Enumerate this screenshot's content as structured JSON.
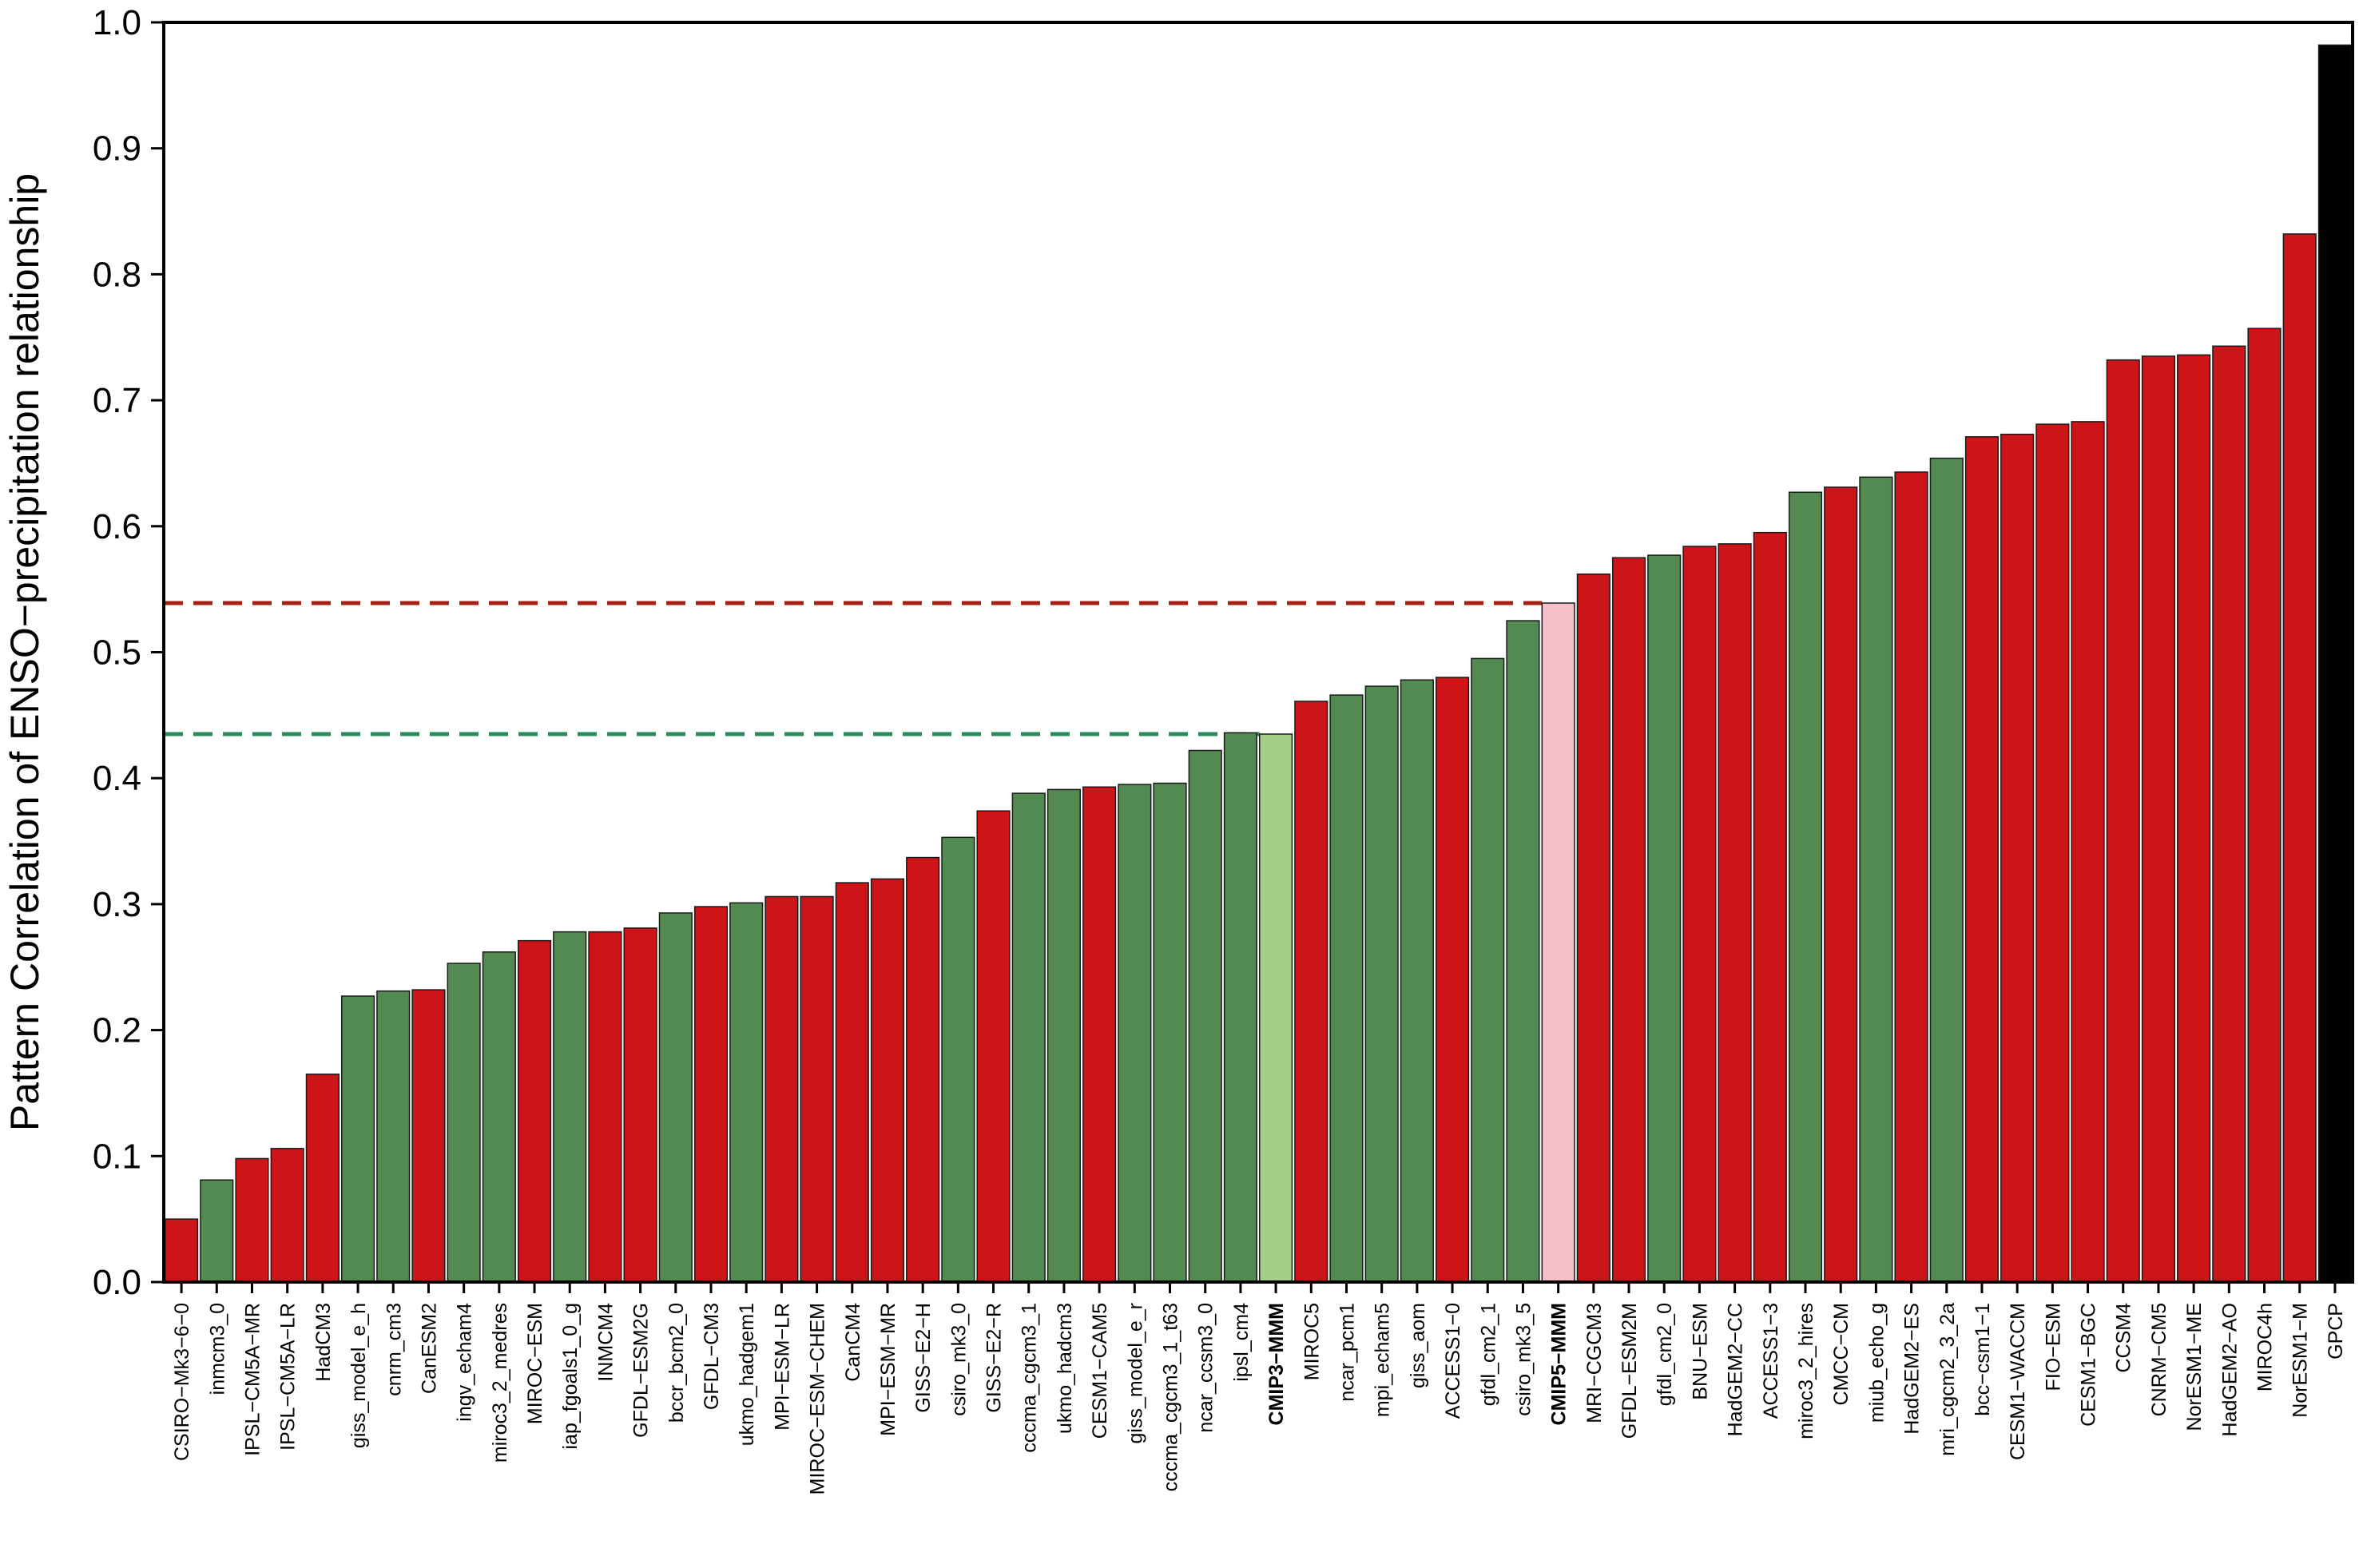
{
  "chart_data": {
    "type": "bar",
    "ylabel": "Pattern Correlation of ENSO−precipitation relationship",
    "xlabel": "",
    "ylim": [
      0.0,
      1.0
    ],
    "yticks": [
      "0.0",
      "0.1",
      "0.2",
      "0.3",
      "0.4",
      "0.5",
      "0.6",
      "0.7",
      "0.8",
      "0.9",
      "1.0"
    ],
    "colors": {
      "cmip5": "#cc1419",
      "cmip3": "#538a52",
      "cmip3_mmm": "#a3cf87",
      "cmip5_mmm": "#f6bfc9",
      "obs": "#000000",
      "cmip5_mmm_line": "#a32314",
      "cmip3_mmm_line": "#2a8a5a"
    },
    "reference_lines": [
      {
        "value": 0.539,
        "color_key": "cmip5_mmm_line",
        "end_category": "CMIP5−MMM"
      },
      {
        "value": 0.435,
        "color_key": "cmip3_mmm_line",
        "end_category": "CMIP3−MMM"
      }
    ],
    "bars": [
      {
        "label": "CSIRO−Mk3−6−0",
        "value": 0.05,
        "group": "cmip5"
      },
      {
        "label": "inmcm3_0",
        "value": 0.081,
        "group": "cmip3"
      },
      {
        "label": "IPSL−CM5A−MR",
        "value": 0.098,
        "group": "cmip5"
      },
      {
        "label": "IPSL−CM5A−LR",
        "value": 0.106,
        "group": "cmip5"
      },
      {
        "label": "HadCM3",
        "value": 0.165,
        "group": "cmip5"
      },
      {
        "label": "giss_model_e_h",
        "value": 0.227,
        "group": "cmip3"
      },
      {
        "label": "cnrm_cm3",
        "value": 0.231,
        "group": "cmip3"
      },
      {
        "label": "CanESM2",
        "value": 0.232,
        "group": "cmip5"
      },
      {
        "label": "ingv_echam4",
        "value": 0.253,
        "group": "cmip3"
      },
      {
        "label": "miroc3_2_medres",
        "value": 0.262,
        "group": "cmip3"
      },
      {
        "label": "MIROC−ESM",
        "value": 0.271,
        "group": "cmip5"
      },
      {
        "label": "iap_fgoals1_0_g",
        "value": 0.278,
        "group": "cmip3"
      },
      {
        "label": "INMCM4",
        "value": 0.278,
        "group": "cmip5"
      },
      {
        "label": "GFDL−ESM2G",
        "value": 0.281,
        "group": "cmip5"
      },
      {
        "label": "bccr_bcm2_0",
        "value": 0.293,
        "group": "cmip3"
      },
      {
        "label": "GFDL−CM3",
        "value": 0.298,
        "group": "cmip5"
      },
      {
        "label": "ukmo_hadgem1",
        "value": 0.301,
        "group": "cmip3"
      },
      {
        "label": "MPI−ESM−LR",
        "value": 0.306,
        "group": "cmip5"
      },
      {
        "label": "MIROC−ESM−CHEM",
        "value": 0.306,
        "group": "cmip5"
      },
      {
        "label": "CanCM4",
        "value": 0.317,
        "group": "cmip5"
      },
      {
        "label": "MPI−ESM−MR",
        "value": 0.32,
        "group": "cmip5"
      },
      {
        "label": "GISS−E2−H",
        "value": 0.337,
        "group": "cmip5"
      },
      {
        "label": "csiro_mk3_0",
        "value": 0.353,
        "group": "cmip3"
      },
      {
        "label": "GISS−E2−R",
        "value": 0.374,
        "group": "cmip5"
      },
      {
        "label": "cccma_cgcm3_1",
        "value": 0.388,
        "group": "cmip3"
      },
      {
        "label": "ukmo_hadcm3",
        "value": 0.391,
        "group": "cmip3"
      },
      {
        "label": "CESM1−CAM5",
        "value": 0.393,
        "group": "cmip5"
      },
      {
        "label": "giss_model_e_r",
        "value": 0.395,
        "group": "cmip3"
      },
      {
        "label": "cccma_cgcm3_1_t63",
        "value": 0.396,
        "group": "cmip3"
      },
      {
        "label": "ncar_ccsm3_0",
        "value": 0.422,
        "group": "cmip3"
      },
      {
        "label": "ipsl_cm4",
        "value": 0.436,
        "group": "cmip3"
      },
      {
        "label": "CMIP3−MMM",
        "value": 0.435,
        "group": "cmip3_mmm",
        "bold": true
      },
      {
        "label": "MIROC5",
        "value": 0.461,
        "group": "cmip5"
      },
      {
        "label": "ncar_pcm1",
        "value": 0.466,
        "group": "cmip3"
      },
      {
        "label": "mpi_echam5",
        "value": 0.473,
        "group": "cmip3"
      },
      {
        "label": "giss_aom",
        "value": 0.478,
        "group": "cmip3"
      },
      {
        "label": "ACCESS1−0",
        "value": 0.48,
        "group": "cmip5"
      },
      {
        "label": "gfdl_cm2_1",
        "value": 0.495,
        "group": "cmip3"
      },
      {
        "label": "csiro_mk3_5",
        "value": 0.525,
        "group": "cmip3"
      },
      {
        "label": "CMIP5−MMM",
        "value": 0.539,
        "group": "cmip5_mmm",
        "bold": true
      },
      {
        "label": "MRI−CGCM3",
        "value": 0.562,
        "group": "cmip5"
      },
      {
        "label": "GFDL−ESM2M",
        "value": 0.575,
        "group": "cmip5"
      },
      {
        "label": "gfdl_cm2_0",
        "value": 0.577,
        "group": "cmip3"
      },
      {
        "label": "BNU−ESM",
        "value": 0.584,
        "group": "cmip5"
      },
      {
        "label": "HadGEM2−CC",
        "value": 0.586,
        "group": "cmip5"
      },
      {
        "label": "ACCESS1−3",
        "value": 0.595,
        "group": "cmip5"
      },
      {
        "label": "miroc3_2_hires",
        "value": 0.627,
        "group": "cmip3"
      },
      {
        "label": "CMCC−CM",
        "value": 0.631,
        "group": "cmip5"
      },
      {
        "label": "miub_echo_g",
        "value": 0.639,
        "group": "cmip3"
      },
      {
        "label": "HadGEM2−ES",
        "value": 0.643,
        "group": "cmip5"
      },
      {
        "label": "mri_cgcm2_3_2a",
        "value": 0.654,
        "group": "cmip3"
      },
      {
        "label": "bcc−csm1−1",
        "value": 0.671,
        "group": "cmip5"
      },
      {
        "label": "CESM1−WACCM",
        "value": 0.673,
        "group": "cmip5"
      },
      {
        "label": "FIO−ESM",
        "value": 0.681,
        "group": "cmip5"
      },
      {
        "label": "CESM1−BGC",
        "value": 0.683,
        "group": "cmip5"
      },
      {
        "label": "CCSM4",
        "value": 0.732,
        "group": "cmip5"
      },
      {
        "label": "CNRM−CM5",
        "value": 0.735,
        "group": "cmip5"
      },
      {
        "label": "NorESM1−ME",
        "value": 0.736,
        "group": "cmip5"
      },
      {
        "label": "HadGEM2−AO",
        "value": 0.743,
        "group": "cmip5"
      },
      {
        "label": "MIROC4h",
        "value": 0.757,
        "group": "cmip5"
      },
      {
        "label": "NorESM1−M",
        "value": 0.832,
        "group": "cmip5"
      },
      {
        "label": "GPCP",
        "value": 0.982,
        "group": "obs"
      }
    ]
  }
}
